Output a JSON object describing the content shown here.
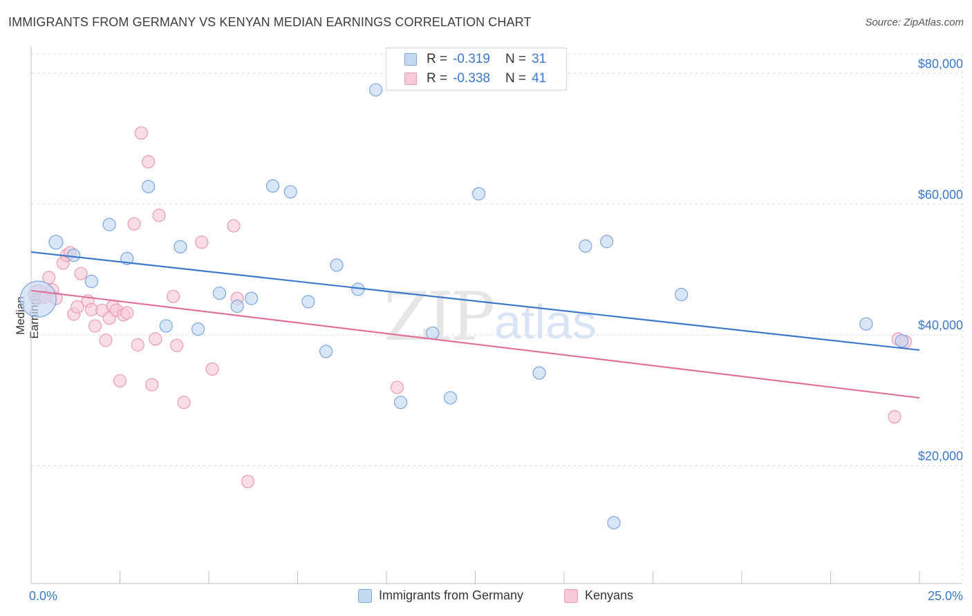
{
  "header": {
    "title": "IMMIGRANTS FROM GERMANY VS KENYAN MEDIAN EARNINGS CORRELATION CHART",
    "source": "Source: ZipAtlas.com"
  },
  "watermark": {
    "zip": "ZIP",
    "atlas": "atlas"
  },
  "colors": {
    "blue": "#3b78c9",
    "blue_fill": "#c5d9f3",
    "blue_stroke": "#7aa5dc",
    "pink": "#e0709a",
    "pink_fill": "#f8cad8",
    "pink_stroke": "#e99ab4",
    "grid": "#dcdcdc"
  },
  "legend": {
    "rows": [
      {
        "r_label": "R =",
        "r_value": "-0.319",
        "n_label": "N =",
        "n_value": "31"
      },
      {
        "r_label": "R =",
        "r_value": "-0.338",
        "n_label": "N =",
        "n_value": "41"
      }
    ]
  },
  "bottom_legend": {
    "items": [
      {
        "label": "Immigrants from Germany"
      },
      {
        "label": "Kenyans"
      }
    ]
  },
  "chart_data": {
    "type": "scatter",
    "title": "IMMIGRANTS FROM GERMANY VS KENYAN MEDIAN EARNINGS CORRELATION CHART",
    "xlabel": "",
    "ylabel": "Median Earnings",
    "xlim": [
      0,
      25
    ],
    "ylim": [
      2000,
      83000
    ],
    "x_tick_labels": [
      "0.0%",
      "25.0%"
    ],
    "y_ticks": [
      20000,
      40000,
      60000,
      80000
    ],
    "y_tick_labels": [
      "$20,000",
      "$40,000",
      "$60,000",
      "$80,000"
    ],
    "grid": true,
    "series": [
      {
        "name": "Immigrants from Germany",
        "r": -0.319,
        "n": 31,
        "trend": [
          [
            0,
            52700
          ],
          [
            25,
            37700
          ]
        ],
        "points": [
          [
            0.2,
            45500,
            26
          ],
          [
            0.7,
            54200,
            10
          ],
          [
            1.2,
            52200,
            9
          ],
          [
            1.7,
            48200,
            9
          ],
          [
            2.2,
            56900,
            9
          ],
          [
            2.7,
            51700,
            9
          ],
          [
            3.3,
            62700,
            9
          ],
          [
            3.8,
            41400,
            9
          ],
          [
            4.2,
            53500,
            9
          ],
          [
            4.7,
            40900,
            9
          ],
          [
            5.3,
            46400,
            9
          ],
          [
            5.8,
            44400,
            9
          ],
          [
            6.2,
            45600,
            9
          ],
          [
            6.8,
            62800,
            9
          ],
          [
            7.3,
            61900,
            9
          ],
          [
            7.8,
            45100,
            9
          ],
          [
            8.3,
            37500,
            9
          ],
          [
            8.6,
            50700,
            9
          ],
          [
            9.2,
            47000,
            9
          ],
          [
            9.7,
            77500,
            9
          ],
          [
            10.4,
            29700,
            9
          ],
          [
            11.3,
            40300,
            9
          ],
          [
            11.8,
            30400,
            9
          ],
          [
            12.6,
            61600,
            9
          ],
          [
            14.3,
            34200,
            9
          ],
          [
            15.6,
            53600,
            9
          ],
          [
            16.2,
            54300,
            9
          ],
          [
            16.4,
            11300,
            9
          ],
          [
            18.3,
            46200,
            9
          ],
          [
            23.5,
            41700,
            9
          ],
          [
            24.5,
            39100,
            9
          ]
        ]
      },
      {
        "name": "Kenyans",
        "r": -0.338,
        "n": 41,
        "trend": [
          [
            0,
            46800
          ],
          [
            25,
            30400
          ]
        ],
        "points": [
          [
            0.2,
            46200,
            14
          ],
          [
            0.4,
            45800,
            9
          ],
          [
            0.5,
            48800,
            9
          ],
          [
            0.6,
            46900,
            9
          ],
          [
            0.7,
            45600,
            9
          ],
          [
            0.9,
            51000,
            9
          ],
          [
            1.0,
            52200,
            9
          ],
          [
            1.1,
            52600,
            9
          ],
          [
            1.2,
            43200,
            9
          ],
          [
            1.3,
            44300,
            9
          ],
          [
            1.4,
            49400,
            9
          ],
          [
            1.6,
            45200,
            9
          ],
          [
            1.7,
            43900,
            9
          ],
          [
            1.8,
            41400,
            9
          ],
          [
            2.0,
            43800,
            9
          ],
          [
            2.1,
            39200,
            9
          ],
          [
            2.2,
            42600,
            9
          ],
          [
            2.3,
            44400,
            9
          ],
          [
            2.4,
            43800,
            9
          ],
          [
            2.5,
            33000,
            9
          ],
          [
            2.6,
            43100,
            9
          ],
          [
            2.7,
            43400,
            9
          ],
          [
            2.9,
            57000,
            9
          ],
          [
            3.0,
            38500,
            9
          ],
          [
            3.1,
            70900,
            9
          ],
          [
            3.3,
            66500,
            9
          ],
          [
            3.4,
            32400,
            9
          ],
          [
            3.6,
            58300,
            9
          ],
          [
            3.5,
            39400,
            9
          ],
          [
            4.0,
            45900,
            9
          ],
          [
            4.1,
            38400,
            9
          ],
          [
            4.3,
            29700,
            9
          ],
          [
            4.8,
            54200,
            9
          ],
          [
            5.1,
            34800,
            9
          ],
          [
            5.7,
            56700,
            9
          ],
          [
            5.8,
            45600,
            9
          ],
          [
            6.1,
            17600,
            9
          ],
          [
            10.3,
            32000,
            9
          ],
          [
            24.3,
            27500,
            9
          ],
          [
            24.4,
            39400,
            9
          ],
          [
            24.6,
            39000,
            9
          ]
        ]
      }
    ]
  }
}
